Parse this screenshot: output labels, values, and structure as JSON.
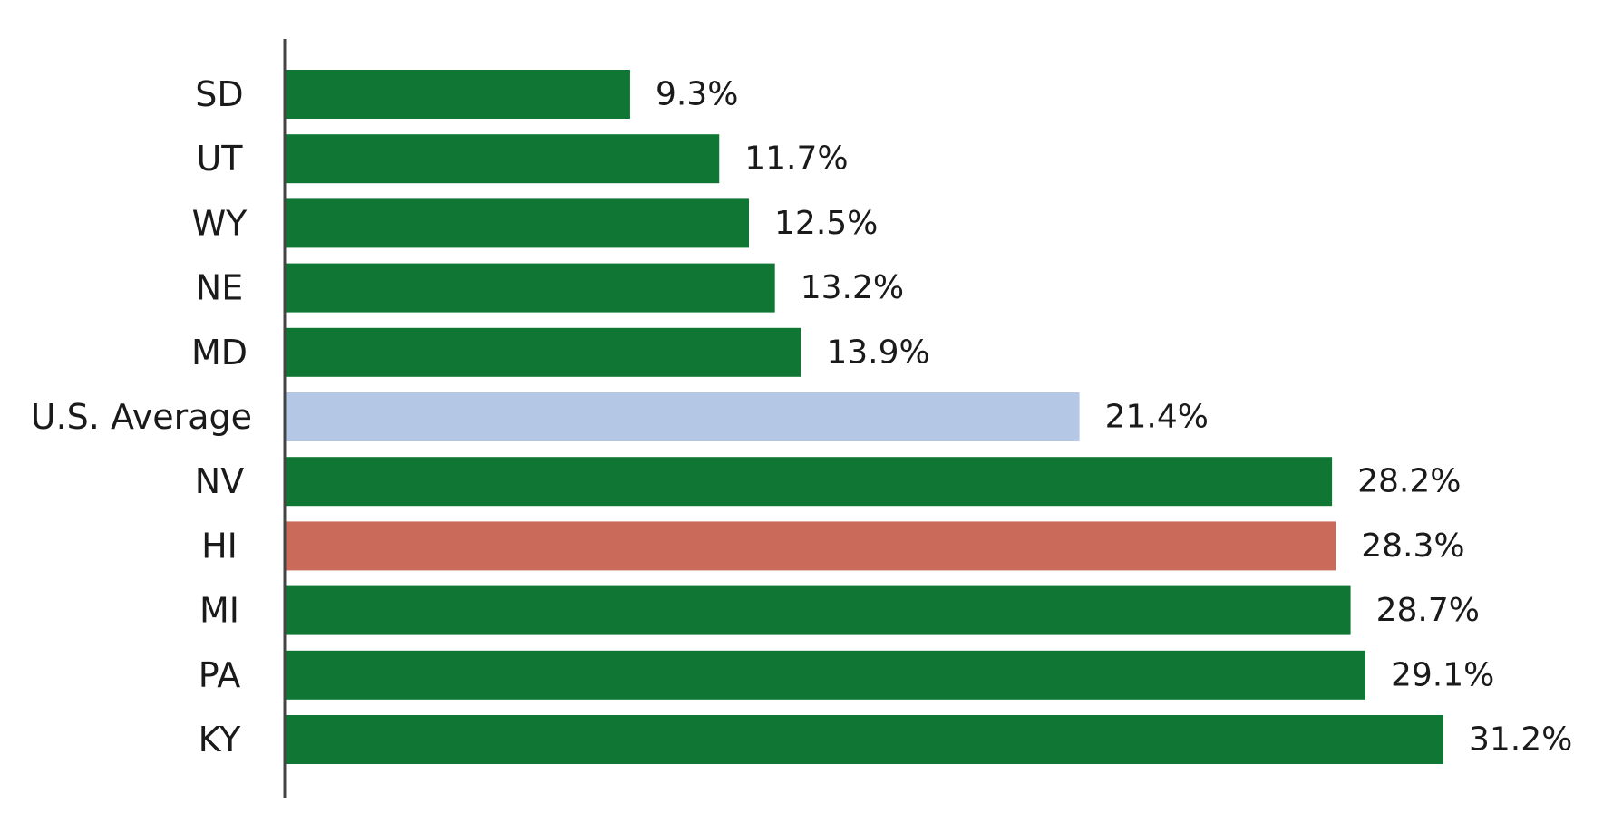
{
  "chart_data": {
    "type": "bar",
    "orientation": "horizontal",
    "title": "",
    "xlabel": "",
    "ylabel": "",
    "grid": false,
    "legend": "none",
    "xlim": [
      0,
      31.2
    ],
    "categories": [
      "SD",
      "UT",
      "WY",
      "NE",
      "MD",
      "U.S. Average",
      "NV",
      "HI",
      "MI",
      "PA",
      "KY"
    ],
    "values": [
      9.3,
      11.7,
      12.5,
      13.2,
      13.9,
      21.4,
      28.2,
      28.3,
      28.7,
      29.1,
      31.2
    ],
    "value_labels": [
      "9.3%",
      "11.7%",
      "12.5%",
      "13.2%",
      "13.9%",
      "21.4%",
      "28.2%",
      "28.3%",
      "28.7%",
      "29.1%",
      "31.2%"
    ],
    "bar_colors": [
      "#0f7733",
      "#0f7733",
      "#0f7733",
      "#0f7733",
      "#0f7733",
      "#b4c8e6",
      "#0f7733",
      "#c96a5b",
      "#0f7733",
      "#0f7733",
      "#0f7733"
    ],
    "axis_color": "#444444"
  }
}
